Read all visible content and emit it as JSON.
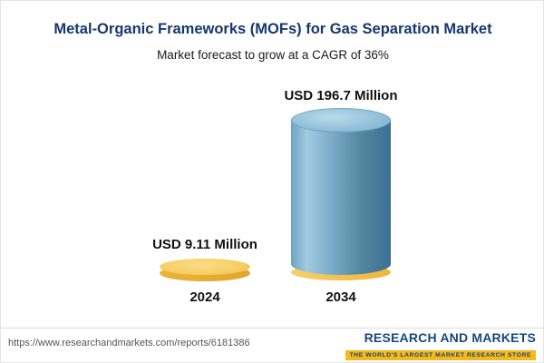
{
  "title": "Metal-Organic Frameworks (MOFs) for Gas Separation Market",
  "subtitle": "Market forecast to grow at a CAGR of 36%",
  "chart_data": {
    "type": "bar",
    "categories": [
      "2024",
      "2034"
    ],
    "values": [
      9.11,
      196.7
    ],
    "unit": "USD Million",
    "value_labels": [
      "USD 9.11 Million",
      "USD 196.7 Million"
    ],
    "title": "Metal-Organic Frameworks (MOFs) for Gas Separation Market",
    "subtitle": "Market forecast to grow at a CAGR of 36%",
    "cagr": "36%",
    "legend_position": "none",
    "grid": false,
    "bar_colors": {
      "2024": "#f2c14e",
      "2034": "#4e86ad"
    },
    "accent_colors": {
      "title_navy": "#17376e",
      "gold": "#f0bd48",
      "blue": "#4e86ad"
    }
  },
  "footer": {
    "url": "https://www.researchandmarkets.com/reports/6181386",
    "logo_main": "RESEARCH AND MARKETS",
    "logo_tagline": "THE WORLD'S LARGEST MARKET RESEARCH STORE"
  }
}
